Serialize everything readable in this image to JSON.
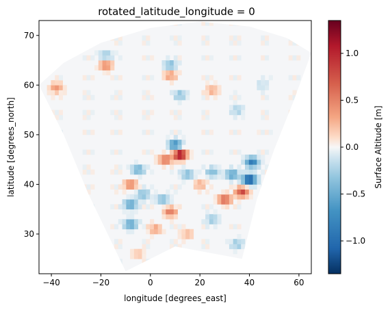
{
  "chart_data": {
    "type": "heatmap",
    "title": "rotated_latitude_longitude = 0",
    "xlabel": "longitude [degrees_east]",
    "ylabel": "latitude [degrees_north]",
    "xlim": [
      -45,
      65
    ],
    "ylim": [
      22,
      73
    ],
    "x_ticks": [
      -40,
      -20,
      0,
      20,
      40,
      60
    ],
    "x_tick_labels": [
      "−40",
      "−20",
      "0",
      "20",
      "40",
      "60"
    ],
    "y_ticks": [
      30,
      40,
      50,
      60,
      70
    ],
    "y_tick_labels": [
      "30",
      "40",
      "50",
      "60",
      "70"
    ],
    "grid": false,
    "colorbar": {
      "label": "Surface Altitude [m]",
      "range": [
        -1.35,
        1.35
      ],
      "colormap": "RdBu_r",
      "ticks": [
        -1.0,
        -0.5,
        0.0,
        0.5,
        1.0
      ],
      "tick_labels": [
        "−1.0",
        "−0.5",
        "0.0",
        "0.5",
        "1.0"
      ]
    },
    "domain_outline": [
      [
        -45,
        60
      ],
      [
        -35,
        64.5
      ],
      [
        -20,
        68.5
      ],
      [
        0,
        71.5
      ],
      [
        20,
        72.8
      ],
      [
        40,
        71.8
      ],
      [
        55,
        69.5
      ],
      [
        65,
        66.5
      ],
      [
        58,
        57
      ],
      [
        50,
        47
      ],
      [
        43,
        37
      ],
      [
        37,
        25
      ],
      [
        10,
        27.5
      ],
      [
        -10,
        22.5
      ],
      [
        -25,
        38
      ],
      [
        -35,
        50
      ]
    ],
    "anomalies": [
      {
        "lon": 12,
        "lat": 46,
        "value": 1.3
      },
      {
        "lon": 10,
        "lat": 48,
        "value": -0.8
      },
      {
        "lon": 6,
        "lat": 45,
        "value": 0.6
      },
      {
        "lon": 40,
        "lat": 41,
        "value": -1.3
      },
      {
        "lon": 41,
        "lat": 44.5,
        "value": -0.9
      },
      {
        "lon": 37,
        "lat": 38.5,
        "value": 0.8
      },
      {
        "lon": 30,
        "lat": 37,
        "value": 0.7
      },
      {
        "lon": 33,
        "lat": 42,
        "value": -0.6
      },
      {
        "lon": 25,
        "lat": 42.5,
        "value": -0.4
      },
      {
        "lon": -5,
        "lat": 43,
        "value": -0.5
      },
      {
        "lon": -8,
        "lat": 40,
        "value": 0.5
      },
      {
        "lon": -8,
        "lat": 36,
        "value": -0.6
      },
      {
        "lon": -3,
        "lat": 38,
        "value": -0.4
      },
      {
        "lon": 5,
        "lat": 37,
        "value": -0.4
      },
      {
        "lon": 8,
        "lat": 34.5,
        "value": 0.55
      },
      {
        "lon": -8,
        "lat": 32,
        "value": -0.6
      },
      {
        "lon": 2,
        "lat": 31,
        "value": 0.35
      },
      {
        "lon": 15,
        "lat": 42,
        "value": -0.4
      },
      {
        "lon": 20,
        "lat": 40,
        "value": 0.3
      },
      {
        "lon": -18,
        "lat": 64,
        "value": 0.5
      },
      {
        "lon": -18,
        "lat": 66,
        "value": -0.3
      },
      {
        "lon": 8,
        "lat": 62,
        "value": 0.4
      },
      {
        "lon": 8,
        "lat": 64,
        "value": -0.4
      },
      {
        "lon": 12,
        "lat": 58,
        "value": -0.35
      },
      {
        "lon": 25,
        "lat": 59,
        "value": 0.3
      },
      {
        "lon": 35,
        "lat": 55,
        "value": -0.25
      },
      {
        "lon": -38,
        "lat": 59.5,
        "value": 0.4
      },
      {
        "lon": 45,
        "lat": 60,
        "value": -0.15
      },
      {
        "lon": 35,
        "lat": 28,
        "value": -0.3
      },
      {
        "lon": 25,
        "lat": 33,
        "value": -0.3
      },
      {
        "lon": 15,
        "lat": 30,
        "value": 0.25
      },
      {
        "lon": -5,
        "lat": 26,
        "value": 0.2
      }
    ]
  }
}
